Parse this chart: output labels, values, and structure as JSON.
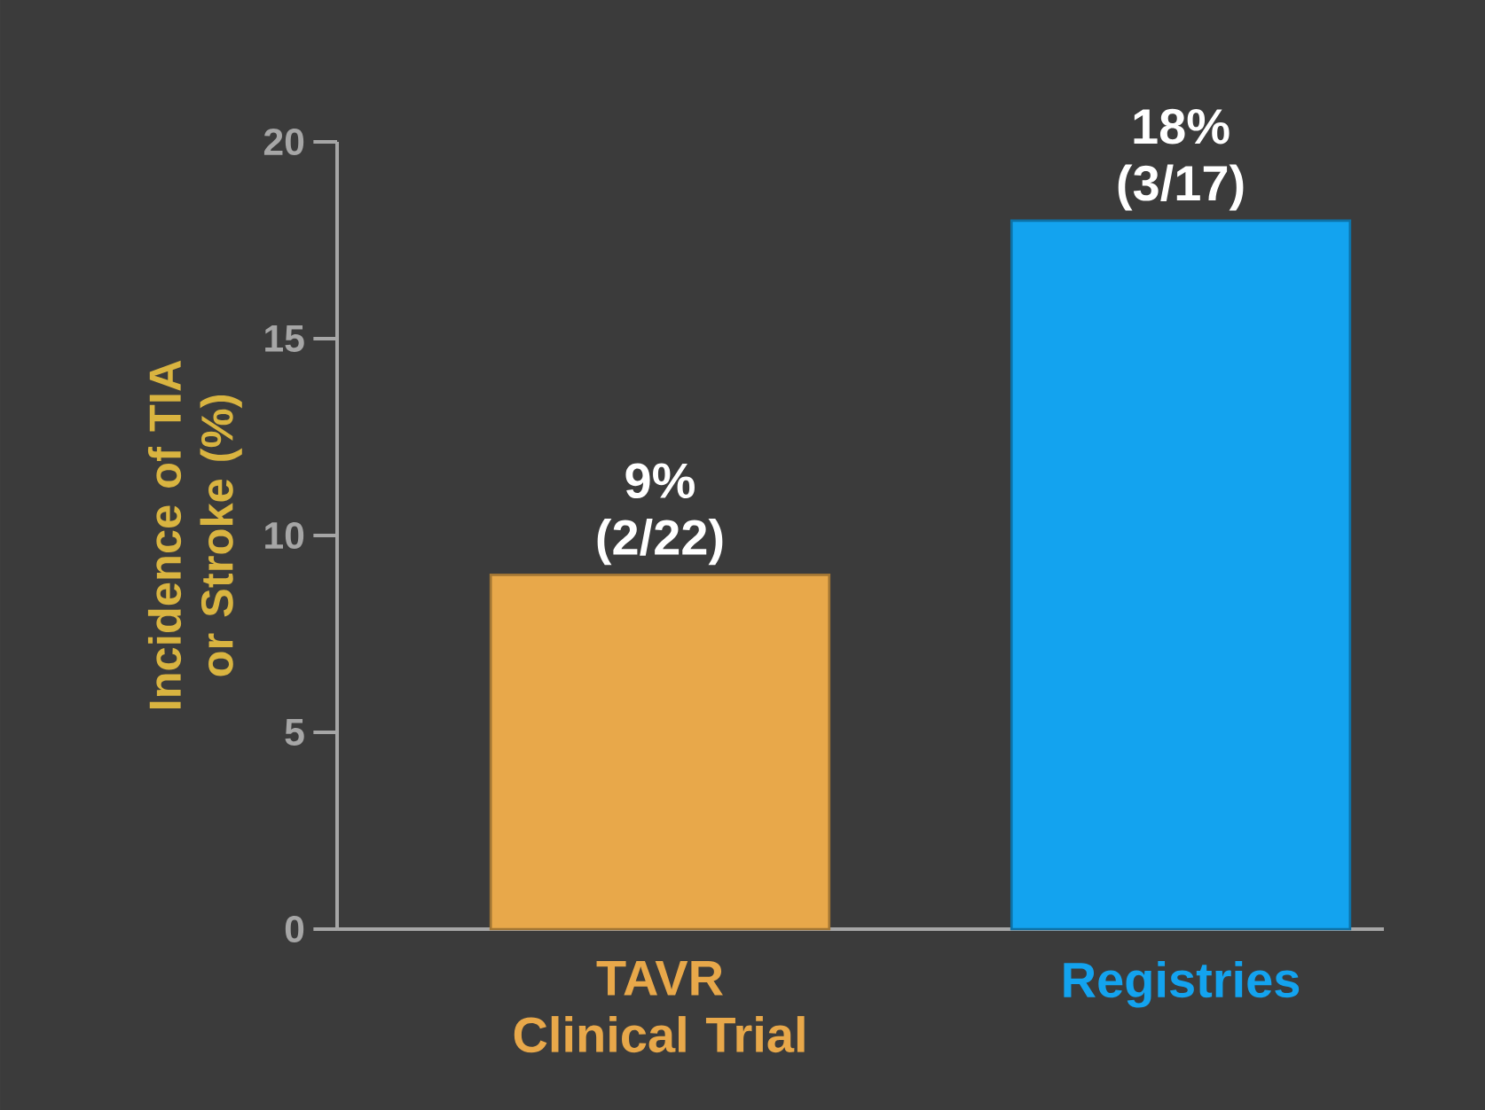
{
  "chart_data": {
    "type": "bar",
    "ylabel": "Incidence of TIA or Stroke (%)",
    "categories": [
      "TAVR Clinical Trial",
      "Registries"
    ],
    "values": [
      9,
      18
    ],
    "colors": [
      "#e8a84a",
      "#13a3ef"
    ],
    "value_labels": [
      "9% (2/22)",
      "18% (3/17)"
    ],
    "ylim": [
      0,
      20
    ],
    "yticks": [
      0,
      5,
      10,
      15,
      20
    ],
    "grid": false
  }
}
